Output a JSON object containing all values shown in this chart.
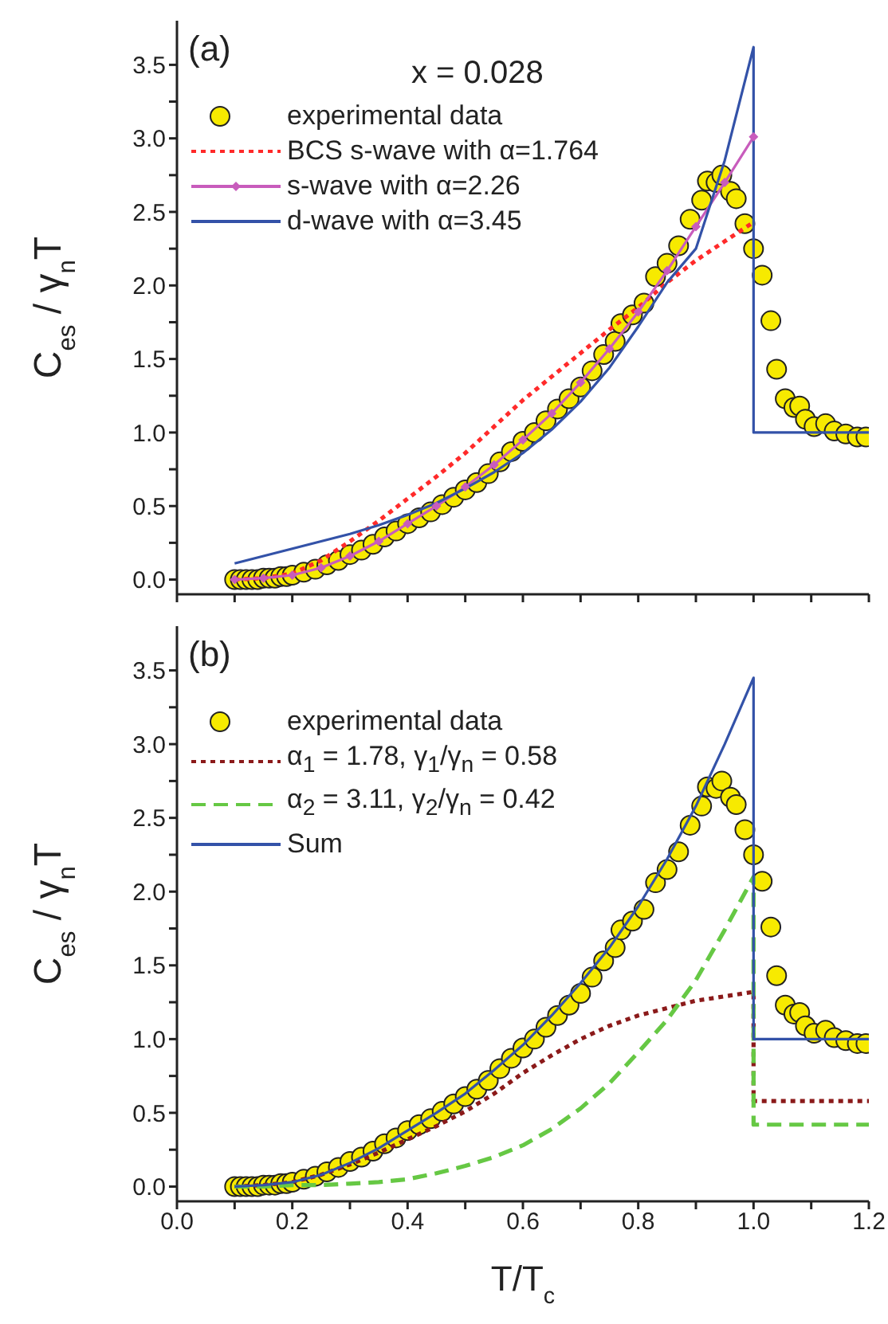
{
  "chart_data": [
    {
      "type": "line",
      "annotations": [
        "(a)",
        "x = 0.028"
      ],
      "ylabel": "C$_{es}$ / γ$_{n}$T",
      "legend": "top left",
      "tick_labels": "y",
      "xlim": [
        0,
        1.2
      ],
      "ylim": [
        -0.1,
        3.8
      ],
      "xticks": [
        0,
        0.1,
        0.2,
        0.3,
        0.4,
        0.5,
        0.6,
        0.7,
        0.8,
        0.9,
        1,
        1.1,
        1.2
      ],
      "yticks": [
        {
          "value": 0,
          "label": "0.0"
        },
        {
          "value": 0.25,
          "label": null
        },
        {
          "value": 0.5,
          "label": "0.5"
        },
        {
          "value": 0.75,
          "label": null
        },
        {
          "value": 1,
          "label": "1.0"
        },
        {
          "value": 1.25,
          "label": null
        },
        {
          "value": 1.5,
          "label": "1.5"
        },
        {
          "value": 1.75,
          "label": null
        },
        {
          "value": 2,
          "label": "2.0"
        },
        {
          "value": 2.25,
          "label": null
        },
        {
          "value": 2.5,
          "label": "2.5"
        },
        {
          "value": 2.75,
          "label": null
        },
        {
          "value": 3,
          "label": "3.0"
        },
        {
          "value": 3.25,
          "label": null
        },
        {
          "value": 3.5,
          "label": "3.5"
        }
      ],
      "series": [
        {
          "type": "scatter",
          "name": "experimental data",
          "color": "#f7ea00",
          "marker": "circle",
          "x": [
            0.1,
            0.11,
            0.12,
            0.13,
            0.14,
            0.15,
            0.16,
            0.17,
            0.18,
            0.19,
            0.2,
            0.22,
            0.24,
            0.26,
            0.28,
            0.3,
            0.32,
            0.34,
            0.36,
            0.38,
            0.4,
            0.42,
            0.44,
            0.46,
            0.48,
            0.5,
            0.52,
            0.54,
            0.56,
            0.58,
            0.6,
            0.62,
            0.64,
            0.66,
            0.68,
            0.7,
            0.72,
            0.74,
            0.76,
            0.77,
            0.79,
            0.81,
            0.83,
            0.85,
            0.87,
            0.89,
            0.91,
            0.92,
            0.935,
            0.945,
            0.96,
            0.97,
            0.985,
            1.0,
            1.015,
            1.03,
            1.04,
            1.055,
            1.07,
            1.08,
            1.09,
            1.105,
            1.125,
            1.14,
            1.16,
            1.18,
            1.195
          ],
          "values": [
            0,
            0,
            0,
            0,
            0,
            0.01,
            0.01,
            0.01,
            0.02,
            0.02,
            0.03,
            0.05,
            0.07,
            0.1,
            0.13,
            0.17,
            0.2,
            0.24,
            0.29,
            0.33,
            0.38,
            0.42,
            0.46,
            0.51,
            0.56,
            0.61,
            0.66,
            0.72,
            0.8,
            0.87,
            0.94,
            1.0,
            1.08,
            1.16,
            1.23,
            1.31,
            1.42,
            1.53,
            1.62,
            1.74,
            1.8,
            1.88,
            2.06,
            2.15,
            2.27,
            2.45,
            2.58,
            2.71,
            2.7,
            2.75,
            2.64,
            2.59,
            2.42,
            2.25,
            2.07,
            1.76,
            1.43,
            1.23,
            1.17,
            1.18,
            1.09,
            1.04,
            1.06,
            1.01,
            0.99,
            0.97,
            0.97
          ]
        },
        {
          "name": "BCS s-wave with α=1.764",
          "color": "#ff2a2a",
          "line_style": "dotted",
          "marker": "none",
          "x": [
            0.1,
            0.15,
            0.2,
            0.25,
            0.3,
            0.35,
            0.4,
            0.45,
            0.5,
            0.55,
            0.6,
            0.65,
            0.7,
            0.75,
            0.8,
            0.85,
            0.9,
            0.95,
            1.0
          ],
          "values": [
            0,
            0.01,
            0.04,
            0.13,
            0.26,
            0.4,
            0.55,
            0.7,
            0.86,
            1.04,
            1.22,
            1.38,
            1.54,
            1.7,
            1.85,
            2.02,
            2.17,
            2.3,
            2.43
          ]
        },
        {
          "name": "s-wave with α=2.26",
          "color": "#c85cbc",
          "line_style": "solid",
          "marker": "diamond",
          "x": [
            0.1,
            0.15,
            0.2,
            0.25,
            0.3,
            0.35,
            0.4,
            0.45,
            0.5,
            0.55,
            0.6,
            0.65,
            0.7,
            0.75,
            0.8,
            0.85,
            0.9,
            0.95,
            1.0
          ],
          "values": [
            0,
            0.01,
            0.03,
            0.08,
            0.16,
            0.26,
            0.38,
            0.5,
            0.63,
            0.78,
            0.95,
            1.13,
            1.34,
            1.57,
            1.82,
            2.1,
            2.4,
            2.7,
            3.01
          ]
        },
        {
          "name": "d-wave with α=3.45",
          "color": "#3352a8",
          "line_style": "solid",
          "marker": "none",
          "x": [
            0.1,
            0.15,
            0.2,
            0.25,
            0.3,
            0.35,
            0.4,
            0.45,
            0.5,
            0.55,
            0.6,
            0.65,
            0.7,
            0.75,
            0.8,
            0.85,
            0.9,
            0.95,
            1.0,
            1.0,
            1.2
          ],
          "values": [
            0.11,
            0.16,
            0.21,
            0.26,
            0.31,
            0.37,
            0.44,
            0.52,
            0.62,
            0.73,
            0.86,
            1.02,
            1.21,
            1.44,
            1.72,
            2.02,
            2.25,
            2.85,
            3.62,
            1.0,
            1.0
          ]
        }
      ]
    },
    {
      "type": "line",
      "annotations": [
        "(b)"
      ],
      "xlabel": "T/T$_{c}$",
      "ylabel": "C$_{es}$ / γ$_{n}$T",
      "legend": "top left",
      "xlim": [
        0,
        1.2
      ],
      "ylim": [
        -0.1,
        3.8
      ],
      "xticks": [
        {
          "value": 0,
          "label": "0.0"
        },
        {
          "value": 0.1,
          "label": null
        },
        {
          "value": 0.2,
          "label": "0.2"
        },
        {
          "value": 0.3,
          "label": null
        },
        {
          "value": 0.4,
          "label": "0.4"
        },
        {
          "value": 0.5,
          "label": null
        },
        {
          "value": 0.6,
          "label": "0.6"
        },
        {
          "value": 0.7,
          "label": null
        },
        {
          "value": 0.8,
          "label": "0.8"
        },
        {
          "value": 0.9,
          "label": null
        },
        {
          "value": 1,
          "label": "1.0"
        },
        {
          "value": 1.1,
          "label": null
        },
        {
          "value": 1.2,
          "label": "1.2"
        }
      ],
      "yticks": [
        {
          "value": 0,
          "label": "0.0"
        },
        {
          "value": 0.25,
          "label": null
        },
        {
          "value": 0.5,
          "label": "0.5"
        },
        {
          "value": 0.75,
          "label": null
        },
        {
          "value": 1,
          "label": "1.0"
        },
        {
          "value": 1.25,
          "label": null
        },
        {
          "value": 1.5,
          "label": "1.5"
        },
        {
          "value": 1.75,
          "label": null
        },
        {
          "value": 2,
          "label": "2.0"
        },
        {
          "value": 2.25,
          "label": null
        },
        {
          "value": 2.5,
          "label": "2.5"
        },
        {
          "value": 2.75,
          "label": null
        },
        {
          "value": 3,
          "label": "3.0"
        },
        {
          "value": 3.25,
          "label": null
        },
        {
          "value": 3.5,
          "label": "3.5"
        }
      ],
      "series": [
        {
          "type": "scatter",
          "name": "experimental data",
          "color": "#f7ea00",
          "marker": "circle",
          "x": [
            0.1,
            0.11,
            0.12,
            0.13,
            0.14,
            0.15,
            0.16,
            0.17,
            0.18,
            0.19,
            0.2,
            0.22,
            0.24,
            0.26,
            0.28,
            0.3,
            0.32,
            0.34,
            0.36,
            0.38,
            0.4,
            0.42,
            0.44,
            0.46,
            0.48,
            0.5,
            0.52,
            0.54,
            0.56,
            0.58,
            0.6,
            0.62,
            0.64,
            0.66,
            0.68,
            0.7,
            0.72,
            0.74,
            0.76,
            0.77,
            0.79,
            0.81,
            0.83,
            0.85,
            0.87,
            0.89,
            0.91,
            0.92,
            0.935,
            0.945,
            0.96,
            0.97,
            0.985,
            1.0,
            1.015,
            1.03,
            1.04,
            1.055,
            1.07,
            1.08,
            1.09,
            1.105,
            1.125,
            1.14,
            1.16,
            1.18,
            1.195
          ],
          "values": [
            0,
            0,
            0,
            0,
            0,
            0.01,
            0.01,
            0.01,
            0.02,
            0.02,
            0.03,
            0.05,
            0.07,
            0.1,
            0.13,
            0.17,
            0.2,
            0.24,
            0.29,
            0.33,
            0.38,
            0.42,
            0.46,
            0.51,
            0.56,
            0.61,
            0.66,
            0.72,
            0.8,
            0.87,
            0.94,
            1.0,
            1.08,
            1.16,
            1.23,
            1.31,
            1.42,
            1.53,
            1.62,
            1.74,
            1.8,
            1.88,
            2.06,
            2.15,
            2.27,
            2.45,
            2.58,
            2.71,
            2.7,
            2.75,
            2.64,
            2.59,
            2.42,
            2.25,
            2.07,
            1.76,
            1.43,
            1.23,
            1.17,
            1.18,
            1.09,
            1.04,
            1.06,
            1.01,
            0.99,
            0.97,
            0.97
          ]
        },
        {
          "name": "α$_{1}$ = 1.78, γ$_{1}$/γ$_{n}$ = 0.58",
          "color": "#8b1a1a",
          "line_style": "dotted",
          "marker": "none",
          "x": [
            0.1,
            0.15,
            0.2,
            0.25,
            0.3,
            0.35,
            0.4,
            0.45,
            0.5,
            0.55,
            0.6,
            0.65,
            0.7,
            0.75,
            0.8,
            0.85,
            0.9,
            0.95,
            1.0,
            1.0,
            1.2
          ],
          "values": [
            0,
            0.01,
            0.03,
            0.08,
            0.15,
            0.23,
            0.32,
            0.41,
            0.51,
            0.63,
            0.77,
            0.89,
            1.0,
            1.09,
            1.16,
            1.21,
            1.26,
            1.29,
            1.32,
            0.58,
            0.58
          ]
        },
        {
          "name": "α$_{2}$ = 3.11, γ$_{2}$/γ$_{n}$ = 0.42",
          "color": "#66c844",
          "line_style": "dashed",
          "marker": "none",
          "x": [
            0.1,
            0.15,
            0.2,
            0.25,
            0.3,
            0.35,
            0.4,
            0.45,
            0.5,
            0.55,
            0.6,
            0.65,
            0.7,
            0.75,
            0.8,
            0.85,
            0.9,
            0.95,
            1.0,
            1.0,
            1.2
          ],
          "values": [
            0,
            0,
            0.01,
            0.01,
            0.02,
            0.03,
            0.05,
            0.09,
            0.14,
            0.2,
            0.28,
            0.39,
            0.53,
            0.7,
            0.91,
            1.13,
            1.4,
            1.74,
            2.1,
            0.42,
            0.42
          ]
        },
        {
          "name": "Sum",
          "color": "#3352a8",
          "line_style": "solid",
          "marker": "none",
          "x": [
            0.1,
            0.15,
            0.2,
            0.25,
            0.3,
            0.35,
            0.4,
            0.45,
            0.5,
            0.55,
            0.6,
            0.65,
            0.7,
            0.75,
            0.8,
            0.85,
            0.9,
            0.95,
            1.0,
            1.0,
            1.2
          ],
          "values": [
            0,
            0.01,
            0.03,
            0.08,
            0.16,
            0.26,
            0.38,
            0.5,
            0.63,
            0.79,
            0.96,
            1.16,
            1.38,
            1.62,
            1.9,
            2.22,
            2.58,
            3.0,
            3.45,
            1.0,
            1.0
          ]
        }
      ]
    }
  ]
}
